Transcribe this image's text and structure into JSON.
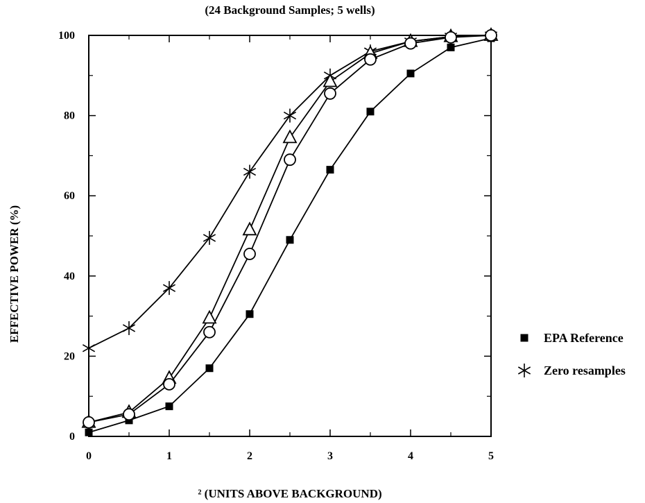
{
  "chart_data": {
    "type": "line",
    "title": "(24 Background Samples; 5 wells)",
    "xlabel": "² (UNITS ABOVE BACKGROUND)",
    "ylabel": "EFFECTIVE POWER (%)",
    "xlim": [
      0,
      5
    ],
    "ylim": [
      0,
      100
    ],
    "x_ticks": [
      "0",
      "1",
      "2",
      "3",
      "4",
      "5"
    ],
    "y_ticks": [
      "0",
      "20",
      "40",
      "60",
      "80",
      "100"
    ],
    "grid": false,
    "legend_position": "right",
    "x": [
      0,
      0.5,
      1,
      1.5,
      2,
      2.5,
      3,
      3.5,
      4,
      4.5,
      5
    ],
    "series": [
      {
        "name": "EPA Reference",
        "marker": "square",
        "values": [
          1,
          4,
          7.5,
          17,
          30.5,
          49,
          66.5,
          81,
          90.5,
          97,
          99.3
        ]
      },
      {
        "name": "Zero resamples",
        "marker": "star",
        "values": [
          22,
          27,
          37,
          49.5,
          66,
          80,
          90,
          96,
          98.5,
          99.7,
          100
        ]
      },
      {
        "name": "",
        "marker": "triangle",
        "values": [
          3.5,
          6,
          14.5,
          29.5,
          51.5,
          74.5,
          88.5,
          95.5,
          98.5,
          99.7,
          100
        ]
      },
      {
        "name": "",
        "marker": "circle",
        "values": [
          3.5,
          5.5,
          13,
          26,
          45.5,
          69,
          85.5,
          94,
          98,
          99.5,
          100
        ]
      }
    ]
  }
}
